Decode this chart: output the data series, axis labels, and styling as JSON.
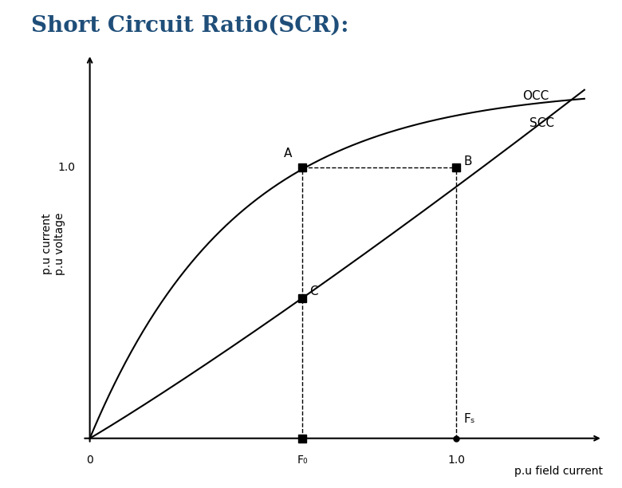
{
  "title": "Short Circuit Ratio(SCR):",
  "title_color": "#1F4E79",
  "title_fontsize": 20,
  "background_color": "#FFFFFF",
  "occ_label": "OCC",
  "scc_label": "SCC",
  "xlabel": "p.u field current",
  "ylabel_line1": "p.u current",
  "ylabel_line2": "p.u voltage",
  "x_tick_labels": [
    "0",
    "F₀",
    "1.0"
  ],
  "y_tick_labels": [
    "1.0"
  ],
  "point_A": [
    0.58,
    1.0
  ],
  "point_B": [
    1.0,
    1.0
  ],
  "point_C": [
    0.58,
    0.58
  ],
  "point_F0": [
    0.58,
    0.0
  ],
  "point_Fs": [
    1.0,
    0.0
  ],
  "dashed_line_color": "black",
  "curve_color": "black",
  "annotation_fontsize": 11,
  "axis_label_fontsize": 10
}
